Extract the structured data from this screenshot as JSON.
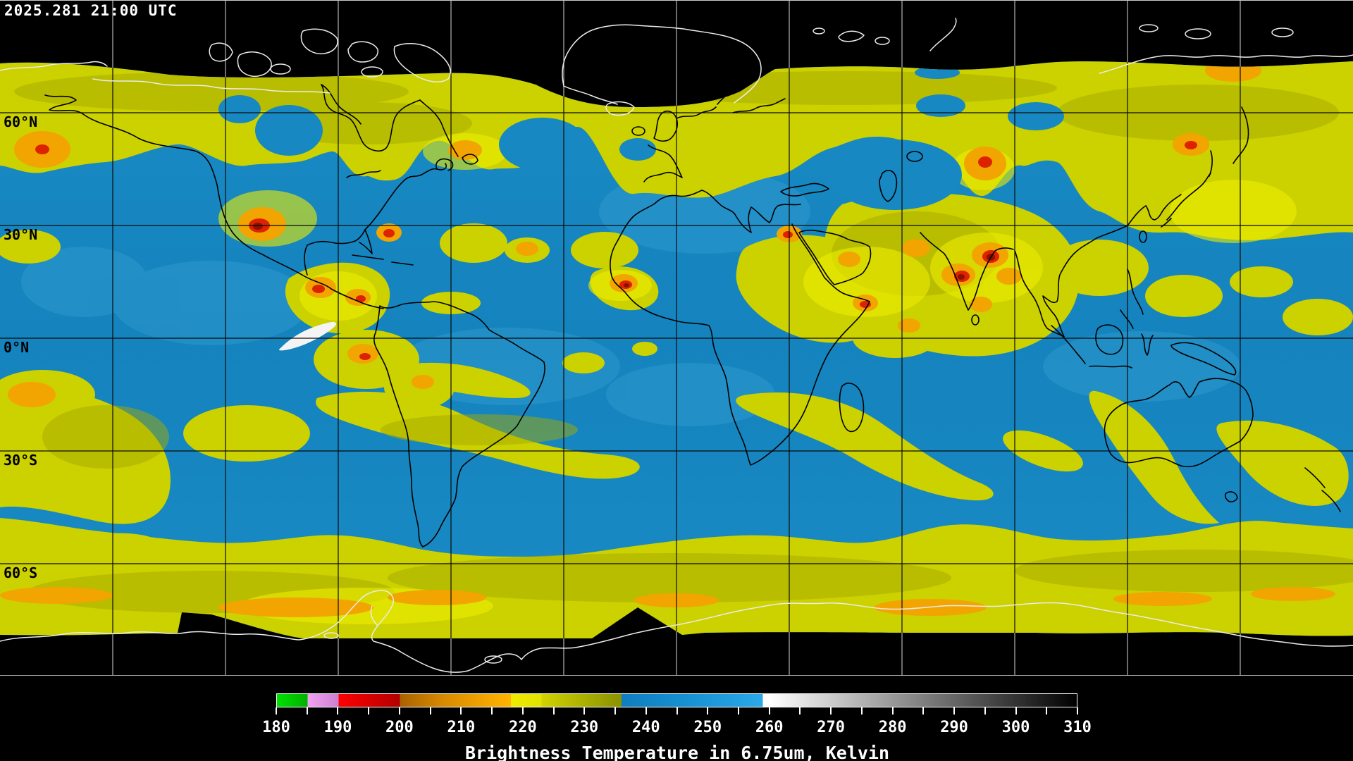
{
  "header": {
    "timestamp": "2025.281 21:00 UTC"
  },
  "map": {
    "lat_labels": [
      {
        "text": "60°N"
      },
      {
        "text": "30°N"
      },
      {
        "text": "0°N"
      },
      {
        "text": "30°S"
      },
      {
        "text": "60°S"
      }
    ],
    "colors": {
      "ocean_dry_blue": "#1788c2",
      "moist_yellow": "#ccd100",
      "olive": "#a4aa00",
      "cold_orange": "#f2a400",
      "very_cold_red": "#dd2200",
      "extreme_dark_red": "#8c1200",
      "no_data": "#000000",
      "polar_coastline": "#e8e8e8",
      "data_coastline": "#000000"
    }
  },
  "colorbar": {
    "min": 180,
    "max": 310,
    "unit": "Kelvin",
    "caption": "Brightness Temperature in 6.75um, Kelvin",
    "tick_values": [
      180,
      185,
      190,
      195,
      200,
      205,
      210,
      215,
      220,
      225,
      230,
      235,
      240,
      245,
      250,
      255,
      260,
      265,
      270,
      275,
      280,
      285,
      290,
      295,
      300,
      305,
      310
    ],
    "labels": [
      "180",
      "190",
      "200",
      "210",
      "220",
      "230",
      "240",
      "250",
      "260",
      "270",
      "280",
      "290",
      "300",
      "310"
    ],
    "segments": [
      {
        "from": 180,
        "to": 185,
        "c1": "#00e000",
        "c2": "#00b000"
      },
      {
        "from": 185,
        "to": 190,
        "c1": "#f2a2f2",
        "c2": "#cc80d2"
      },
      {
        "from": 190,
        "to": 200,
        "c1": "#ff0000",
        "c2": "#b20000"
      },
      {
        "from": 200,
        "to": 207,
        "c1": "#aa6200",
        "c2": "#d88a00"
      },
      {
        "from": 207,
        "to": 218,
        "c1": "#d88a00",
        "c2": "#ffb400"
      },
      {
        "from": 218,
        "to": 223,
        "c1": "#f0ec00",
        "c2": "#e2e200"
      },
      {
        "from": 223,
        "to": 236,
        "c1": "#d2d200",
        "c2": "#8a9200"
      },
      {
        "from": 236,
        "to": 247,
        "c1": "#0f7ec0",
        "c2": "#1792d2"
      },
      {
        "from": 247,
        "to": 259,
        "c1": "#1792d2",
        "c2": "#2aa8e8"
      },
      {
        "from": 259,
        "to": 260,
        "c1": "#ffffff",
        "c2": "#ffffff"
      },
      {
        "from": 260,
        "to": 310,
        "c1": "#ffffff",
        "c2": "#000000"
      }
    ]
  }
}
